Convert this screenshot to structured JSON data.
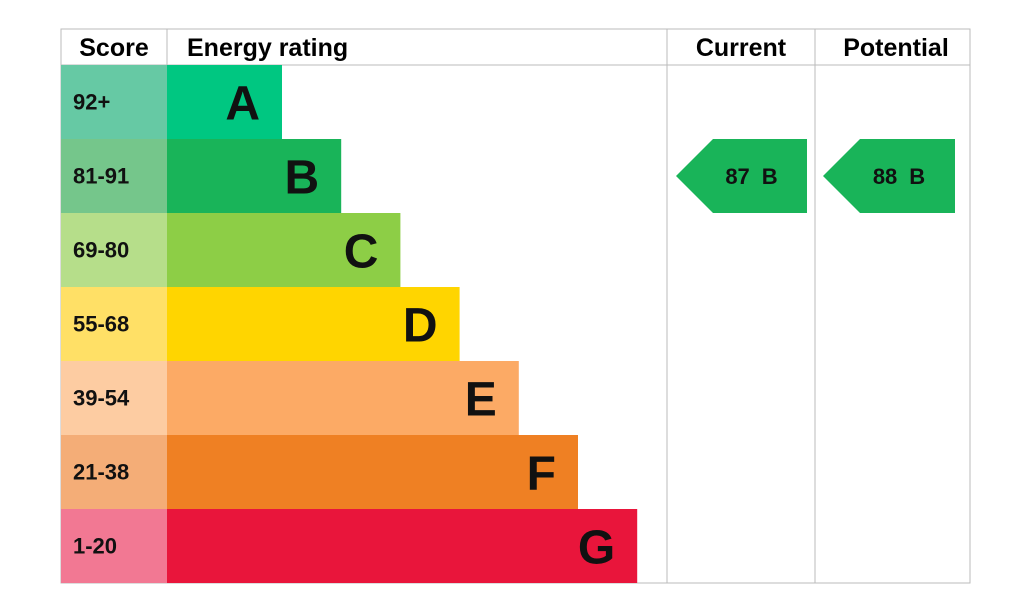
{
  "headers": {
    "score": "Score",
    "rating": "Energy rating",
    "current": "Current",
    "potential": "Potential"
  },
  "bands": [
    {
      "score": "92+",
      "letter": "A",
      "score_color": "#66c9a4",
      "color": "#00c781"
    },
    {
      "score": "81-91",
      "letter": "B",
      "score_color": "#75c68b",
      "color": "#19b459"
    },
    {
      "score": "69-80",
      "letter": "C",
      "score_color": "#b6de8a",
      "color": "#8dce46"
    },
    {
      "score": "55-68",
      "letter": "D",
      "score_color": "#ffe066",
      "color": "#ffd500"
    },
    {
      "score": "39-54",
      "letter": "E",
      "score_color": "#fdcca2",
      "color": "#fcaa65"
    },
    {
      "score": "21-38",
      "letter": "F",
      "score_color": "#f4ad77",
      "color": "#ef8023"
    },
    {
      "score": "1-20",
      "letter": "G",
      "score_color": "#f27893",
      "color": "#e9153b"
    }
  ],
  "current": {
    "score": 87,
    "letter": "B"
  },
  "potential": {
    "score": 88,
    "letter": "B"
  }
}
